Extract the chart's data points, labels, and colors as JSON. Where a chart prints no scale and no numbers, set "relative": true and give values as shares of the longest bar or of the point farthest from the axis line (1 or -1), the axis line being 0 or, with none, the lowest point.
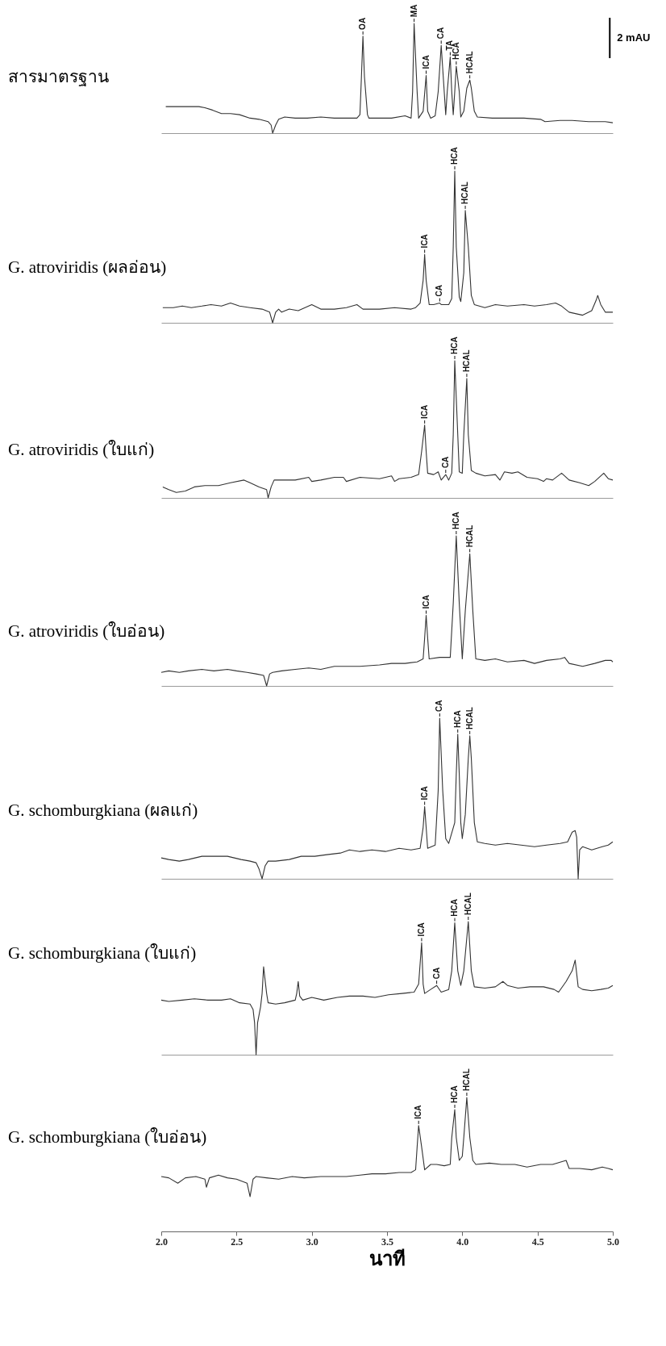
{
  "chart_data": [
    {
      "type": "line",
      "title": "สารมาตรฐาน",
      "relative": true,
      "xlim": [
        2,
        5
      ],
      "tick_labels": false,
      "series": [
        {
          "color": "#333333",
          "x": [
            2.03,
            2.16,
            2.25,
            2.29,
            2.34,
            2.4,
            2.46,
            2.52,
            2.59,
            2.65,
            2.71,
            2.73,
            2.74,
            2.76,
            2.78,
            2.82,
            2.89,
            2.97,
            3.06,
            3.15,
            3.23,
            3.3,
            3.32,
            3.33,
            3.34,
            3.35,
            3.37,
            3.38,
            3.45,
            3.53,
            3.62,
            3.66,
            3.67,
            3.68,
            3.7,
            3.71,
            3.74,
            3.76,
            3.77,
            3.79,
            3.82,
            3.84,
            3.86,
            3.88,
            3.89,
            3.9,
            3.92,
            3.93,
            3.94,
            3.95,
            3.96,
            3.98,
            3.99,
            4.01,
            4.03,
            4.05,
            4.06,
            4.08,
            4.1,
            4.2,
            4.3,
            4.41,
            4.52,
            4.55,
            4.65,
            4.73,
            4.84,
            4.95,
            5.0
          ],
          "values": [
            0.23,
            0.23,
            0.23,
            0.22,
            0.2,
            0.17,
            0.17,
            0.16,
            0.13,
            0.12,
            0.1,
            0.07,
            0,
            0.07,
            0.12,
            0.14,
            0.13,
            0.13,
            0.14,
            0.13,
            0.13,
            0.13,
            0.16,
            0.49,
            0.84,
            0.49,
            0.16,
            0.13,
            0.13,
            0.13,
            0.15,
            0.13,
            0.36,
            0.95,
            0.36,
            0.13,
            0.19,
            0.5,
            0.19,
            0.13,
            0.15,
            0.36,
            0.76,
            0.36,
            0.16,
            0.36,
            0.66,
            0.36,
            0.16,
            0.36,
            0.58,
            0.36,
            0.14,
            0.19,
            0.39,
            0.46,
            0.39,
            0.19,
            0.14,
            0.13,
            0.13,
            0.13,
            0.12,
            0.1,
            0.11,
            0.11,
            0.1,
            0.1,
            0.09
          ]
        },
        {
          "name": "2 mAU",
          "color": "#000000",
          "x": [
            4.98,
            4.98
          ],
          "values": [
            0.65,
            1
          ]
        }
      ],
      "annotations": [
        {
          "text": "OA",
          "x": 3.34,
          "y": 0.84
        },
        {
          "text": "MA",
          "x": 3.68,
          "y": 0.95
        },
        {
          "text": "ICA",
          "x": 3.76,
          "y": 0.5
        },
        {
          "text": "CA",
          "x": 3.86,
          "y": 0.76
        },
        {
          "text": "TA",
          "x": 3.92,
          "y": 0.66
        },
        {
          "text": "HCA",
          "x": 3.96,
          "y": 0.58
        },
        {
          "text": "HCAL",
          "x": 4.05,
          "y": 0.46
        }
      ]
    },
    {
      "type": "line",
      "title": "G. atroviridis (ผลอ่อน)",
      "relative": true,
      "xlim": [
        2,
        5
      ],
      "tick_labels": false,
      "color": "#333333",
      "x": [
        2.01,
        2.08,
        2.14,
        2.2,
        2.27,
        2.33,
        2.4,
        2.46,
        2.52,
        2.59,
        2.67,
        2.72,
        2.74,
        2.76,
        2.78,
        2.8,
        2.85,
        2.91,
        3.0,
        3.06,
        3.15,
        3.23,
        3.3,
        3.34,
        3.45,
        3.55,
        3.66,
        3.69,
        3.72,
        3.74,
        3.75,
        3.76,
        3.78,
        3.81,
        3.85,
        3.86,
        3.91,
        3.93,
        3.94,
        3.95,
        3.96,
        3.98,
        3.99,
        4.01,
        4.02,
        4.04,
        4.06,
        4.08,
        4.15,
        4.22,
        4.3,
        4.41,
        4.48,
        4.56,
        4.62,
        4.66,
        4.71,
        4.8,
        4.86,
        4.89,
        4.9,
        4.92,
        4.95,
        4.99,
        5.0
      ],
      "values": [
        0.1,
        0.1,
        0.11,
        0.1,
        0.11,
        0.12,
        0.11,
        0.13,
        0.11,
        0.1,
        0.09,
        0.07,
        0,
        0.07,
        0.09,
        0.07,
        0.09,
        0.08,
        0.12,
        0.09,
        0.09,
        0.1,
        0.12,
        0.09,
        0.09,
        0.1,
        0.09,
        0.1,
        0.13,
        0.28,
        0.45,
        0.28,
        0.12,
        0.12,
        0.13,
        0.12,
        0.12,
        0.16,
        0.5,
        1,
        0.5,
        0.17,
        0.14,
        0.33,
        0.74,
        0.5,
        0.18,
        0.12,
        0.1,
        0.12,
        0.11,
        0.12,
        0.11,
        0.12,
        0.13,
        0.11,
        0.07,
        0.05,
        0.08,
        0.15,
        0.18,
        0.12,
        0.07,
        0.07,
        0.07
      ],
      "annotations": [
        {
          "text": "ICA",
          "x": 3.75,
          "y": 0.45
        },
        {
          "text": "CA",
          "x": 3.85,
          "y": 0.13
        },
        {
          "text": "HCA",
          "x": 3.95,
          "y": 1
        },
        {
          "text": "HCAL",
          "x": 4.02,
          "y": 0.74
        }
      ]
    },
    {
      "type": "line",
      "title": "G. atroviridis (ใบแก่)",
      "relative": true,
      "xlim": [
        2,
        5
      ],
      "tick_labels": false,
      "color": "#333333",
      "x": [
        2.01,
        2.05,
        2.1,
        2.16,
        2.22,
        2.29,
        2.38,
        2.46,
        2.55,
        2.59,
        2.65,
        2.7,
        2.71,
        2.73,
        2.75,
        2.8,
        2.89,
        2.98,
        3.0,
        3.06,
        3.15,
        3.21,
        3.23,
        3.32,
        3.45,
        3.53,
        3.55,
        3.58,
        3.66,
        3.71,
        3.73,
        3.75,
        3.76,
        3.77,
        3.81,
        3.84,
        3.86,
        3.89,
        3.91,
        3.93,
        3.94,
        3.95,
        3.97,
        3.98,
        4.0,
        4.01,
        4.03,
        4.04,
        4.06,
        4.09,
        4.15,
        4.22,
        4.25,
        4.28,
        4.33,
        4.37,
        4.43,
        4.5,
        4.54,
        4.56,
        4.6,
        4.66,
        4.71,
        4.78,
        4.84,
        4.88,
        4.94,
        4.97,
        5.0
      ],
      "values": [
        0.08,
        0.06,
        0.04,
        0.05,
        0.08,
        0.09,
        0.09,
        0.11,
        0.13,
        0.11,
        0.08,
        0.06,
        0,
        0.08,
        0.13,
        0.13,
        0.13,
        0.15,
        0.12,
        0.13,
        0.15,
        0.15,
        0.12,
        0.15,
        0.14,
        0.16,
        0.12,
        0.14,
        0.15,
        0.17,
        0.34,
        0.53,
        0.34,
        0.18,
        0.17,
        0.19,
        0.13,
        0.17,
        0.13,
        0.18,
        0.46,
        1,
        0.46,
        0.19,
        0.18,
        0.46,
        0.87,
        0.46,
        0.2,
        0.18,
        0.16,
        0.17,
        0.13,
        0.19,
        0.18,
        0.19,
        0.15,
        0.14,
        0.12,
        0.14,
        0.13,
        0.18,
        0.13,
        0.11,
        0.09,
        0.12,
        0.18,
        0.14,
        0.13
      ],
      "annotations": [
        {
          "text": "ICA",
          "x": 3.75,
          "y": 0.53
        },
        {
          "text": "CA",
          "x": 3.89,
          "y": 0.17
        },
        {
          "text": "HCA",
          "x": 3.95,
          "y": 1
        },
        {
          "text": "HCAL",
          "x": 4.03,
          "y": 0.87
        }
      ]
    },
    {
      "type": "line",
      "title": "G. atroviridis (ใบอ่อน)",
      "relative": true,
      "xlim": [
        2,
        5
      ],
      "tick_labels": false,
      "color": "#333333",
      "x": [
        2.0,
        2.05,
        2.12,
        2.18,
        2.27,
        2.35,
        2.44,
        2.5,
        2.57,
        2.63,
        2.68,
        2.7,
        2.72,
        2.74,
        2.8,
        2.89,
        2.98,
        3.06,
        3.15,
        3.23,
        3.32,
        3.45,
        3.53,
        3.62,
        3.7,
        3.74,
        3.75,
        3.76,
        3.77,
        3.78,
        3.85,
        3.92,
        3.94,
        3.96,
        3.98,
        4.0,
        4.02,
        4.05,
        4.07,
        4.09,
        4.15,
        4.22,
        4.3,
        4.41,
        4.48,
        4.56,
        4.65,
        4.68,
        4.71,
        4.8,
        4.88,
        4.95,
        4.99,
        5.0
      ],
      "values": [
        0.09,
        0.1,
        0.09,
        0.1,
        0.11,
        0.1,
        0.11,
        0.1,
        0.09,
        0.08,
        0.07,
        0,
        0.08,
        0.09,
        0.1,
        0.11,
        0.12,
        0.11,
        0.13,
        0.13,
        0.13,
        0.14,
        0.15,
        0.15,
        0.16,
        0.18,
        0.32,
        0.47,
        0.32,
        0.18,
        0.19,
        0.19,
        0.55,
        1,
        0.55,
        0.18,
        0.5,
        0.88,
        0.5,
        0.18,
        0.17,
        0.18,
        0.16,
        0.17,
        0.15,
        0.17,
        0.18,
        0.19,
        0.15,
        0.13,
        0.15,
        0.17,
        0.17,
        0.16
      ],
      "annotations": [
        {
          "text": "ICA",
          "x": 3.76,
          "y": 0.47
        },
        {
          "text": "HCA",
          "x": 3.96,
          "y": 1
        },
        {
          "text": "HCAL",
          "x": 4.05,
          "y": 0.88
        }
      ]
    },
    {
      "type": "line",
      "title": "G. schomburgkiana (ผลแก่)",
      "relative": true,
      "xlim": [
        2,
        5
      ],
      "tick_labels": false,
      "color": "#333333",
      "x": [
        2.0,
        2.05,
        2.12,
        2.18,
        2.27,
        2.35,
        2.44,
        2.53,
        2.59,
        2.63,
        2.65,
        2.67,
        2.69,
        2.71,
        2.76,
        2.85,
        2.93,
        3.02,
        3.1,
        3.19,
        3.25,
        3.32,
        3.4,
        3.49,
        3.58,
        3.66,
        3.72,
        3.74,
        3.75,
        3.76,
        3.77,
        3.82,
        3.84,
        3.85,
        3.87,
        3.89,
        3.91,
        3.95,
        3.96,
        3.97,
        3.98,
        3.99,
        4.0,
        4.02,
        4.04,
        4.05,
        4.06,
        4.08,
        4.1,
        4.15,
        4.22,
        4.3,
        4.39,
        4.48,
        4.56,
        4.65,
        4.7,
        4.73,
        4.75,
        4.76,
        4.77,
        4.78,
        4.8,
        4.86,
        4.93,
        4.97,
        5.0
      ],
      "values": [
        0.13,
        0.12,
        0.11,
        0.12,
        0.14,
        0.14,
        0.14,
        0.12,
        0.11,
        0.1,
        0.06,
        0,
        0.08,
        0.11,
        0.11,
        0.12,
        0.14,
        0.14,
        0.15,
        0.16,
        0.18,
        0.17,
        0.18,
        0.17,
        0.19,
        0.18,
        0.19,
        0.32,
        0.45,
        0.32,
        0.19,
        0.21,
        0.55,
        1,
        0.55,
        0.25,
        0.22,
        0.35,
        0.65,
        0.9,
        0.65,
        0.35,
        0.25,
        0.4,
        0.75,
        0.89,
        0.75,
        0.35,
        0.23,
        0.22,
        0.21,
        0.22,
        0.21,
        0.2,
        0.21,
        0.22,
        0.23,
        0.29,
        0.3,
        0.26,
        0,
        0.18,
        0.2,
        0.18,
        0.2,
        0.21,
        0.23
      ],
      "annotations": [
        {
          "text": "ICA",
          "x": 3.75,
          "y": 0.45
        },
        {
          "text": "CA",
          "x": 3.85,
          "y": 1
        },
        {
          "text": "HCA",
          "x": 3.97,
          "y": 0.9
        },
        {
          "text": "HCAL",
          "x": 4.05,
          "y": 0.89
        }
      ]
    },
    {
      "type": "line",
      "title": "G. schomburgkiana (ใบแก่)",
      "relative": true,
      "xlim": [
        2,
        5
      ],
      "tick_labels": false,
      "color": "#333333",
      "x": [
        2.0,
        2.05,
        2.14,
        2.22,
        2.31,
        2.4,
        2.46,
        2.52,
        2.59,
        2.61,
        2.62,
        2.63,
        2.64,
        2.66,
        2.67,
        2.68,
        2.7,
        2.71,
        2.76,
        2.82,
        2.89,
        2.9,
        2.91,
        2.92,
        2.94,
        3.0,
        3.08,
        3.17,
        3.25,
        3.34,
        3.42,
        3.51,
        3.6,
        3.68,
        3.71,
        3.73,
        3.74,
        3.75,
        3.79,
        3.83,
        3.86,
        3.91,
        3.93,
        3.95,
        3.97,
        3.99,
        4.01,
        4.04,
        4.06,
        4.08,
        4.15,
        4.22,
        4.27,
        4.3,
        4.37,
        4.45,
        4.54,
        4.61,
        4.64,
        4.69,
        4.73,
        4.75,
        4.77,
        4.8,
        4.86,
        4.92,
        4.97,
        5.0
      ],
      "values": [
        0.41,
        0.4,
        0.41,
        0.42,
        0.41,
        0.41,
        0.42,
        0.39,
        0.38,
        0.34,
        0.24,
        0,
        0.24,
        0.36,
        0.46,
        0.66,
        0.46,
        0.39,
        0.38,
        0.39,
        0.41,
        0.46,
        0.55,
        0.44,
        0.41,
        0.43,
        0.41,
        0.43,
        0.44,
        0.44,
        0.43,
        0.45,
        0.46,
        0.47,
        0.53,
        0.84,
        0.53,
        0.46,
        0.49,
        0.52,
        0.47,
        0.49,
        0.63,
        0.99,
        0.63,
        0.52,
        0.63,
        1,
        0.63,
        0.51,
        0.5,
        0.51,
        0.55,
        0.52,
        0.5,
        0.51,
        0.51,
        0.49,
        0.47,
        0.55,
        0.63,
        0.71,
        0.51,
        0.49,
        0.48,
        0.49,
        0.5,
        0.52
      ],
      "annotations": [
        {
          "text": "ICA",
          "x": 3.73,
          "y": 0.84
        },
        {
          "text": "CA",
          "x": 3.83,
          "y": 0.52
        },
        {
          "text": "HCA",
          "x": 3.95,
          "y": 0.99
        },
        {
          "text": "HCAL",
          "x": 4.04,
          "y": 1
        }
      ]
    },
    {
      "type": "line",
      "title": "G. schomburgkiana (ใบอ่อน)",
      "relative": true,
      "xlim": [
        2,
        5
      ],
      "color": "#333333",
      "xlabel": "นาที",
      "xticks": [
        {
          "value": 2,
          "label": "2.0"
        },
        {
          "value": 2.5,
          "label": "2.5"
        },
        {
          "value": 3,
          "label": "3.0"
        },
        {
          "value": 3.5,
          "label": "3.5"
        },
        {
          "value": 4,
          "label": "4.0"
        },
        {
          "value": 4.5,
          "label": "4.5"
        },
        {
          "value": 5,
          "label": "5.0"
        }
      ],
      "x": [
        2.0,
        2.05,
        2.11,
        2.16,
        2.23,
        2.29,
        2.3,
        2.32,
        2.38,
        2.44,
        2.5,
        2.57,
        2.59,
        2.61,
        2.63,
        2.7,
        2.78,
        2.87,
        2.95,
        3.06,
        3.15,
        3.23,
        3.32,
        3.4,
        3.49,
        3.58,
        3.66,
        3.69,
        3.7,
        3.71,
        3.73,
        3.75,
        3.79,
        3.83,
        3.88,
        3.92,
        3.93,
        3.95,
        3.96,
        3.98,
        4.0,
        4.01,
        4.03,
        4.05,
        4.07,
        4.09,
        4.18,
        4.26,
        4.35,
        4.43,
        4.52,
        4.6,
        4.69,
        4.71,
        4.78,
        4.86,
        4.93,
        4.97,
        5.0
      ],
      "values": [
        0.41,
        0.4,
        0.36,
        0.4,
        0.41,
        0.39,
        0.33,
        0.4,
        0.42,
        0.4,
        0.39,
        0.36,
        0.26,
        0.39,
        0.41,
        0.4,
        0.39,
        0.41,
        0.4,
        0.41,
        0.41,
        0.41,
        0.42,
        0.43,
        0.43,
        0.44,
        0.44,
        0.46,
        0.63,
        0.79,
        0.63,
        0.46,
        0.5,
        0.5,
        0.49,
        0.5,
        0.7,
        0.91,
        0.7,
        0.53,
        0.56,
        0.7,
        1,
        0.7,
        0.53,
        0.5,
        0.51,
        0.5,
        0.5,
        0.48,
        0.5,
        0.5,
        0.53,
        0.47,
        0.47,
        0.46,
        0.48,
        0.47,
        0.46
      ],
      "annotations": [
        {
          "text": "ICA",
          "x": 3.71,
          "y": 0.79
        },
        {
          "text": "HCA",
          "x": 3.95,
          "y": 0.91
        },
        {
          "text": "HCAL",
          "x": 4.03,
          "y": 1
        }
      ]
    }
  ]
}
